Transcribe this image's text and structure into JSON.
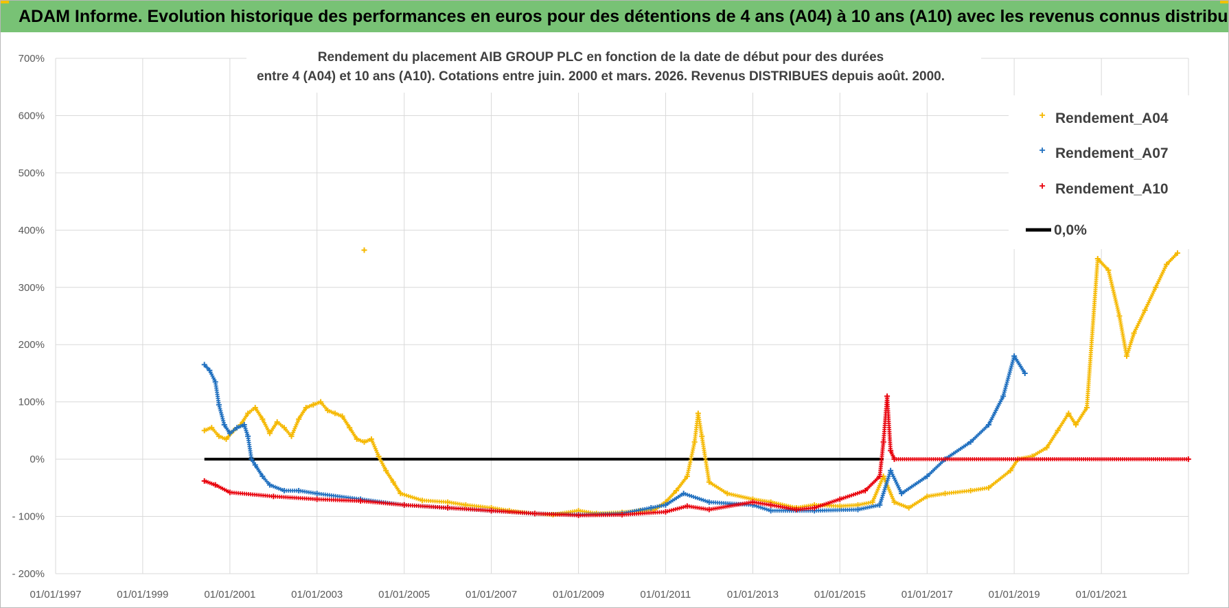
{
  "header": {
    "title": "ADAM Informe. Evolution historique des performances en euros pour des détentions de 4 ans (A04) à 10 ans (A10) avec les revenus connus distribués"
  },
  "colors": {
    "banner": "#78c275",
    "a04": "#f5b800",
    "a07": "#1f6fbf",
    "a10": "#e8000b",
    "zero": "#000000",
    "grid": "#d9d9d9"
  },
  "chart_data": {
    "type": "scatter",
    "title_lines": [
      "Rendement du placement AIB GROUP PLC en fonction de la date de début pour des durées",
      "entre 4 (A04) et 10 ans (A10). Cotations entre juin. 2000 et mars. 2026. Revenus DISTRIBUES depuis août. 2000."
    ],
    "x_axis": {
      "type": "date",
      "range": [
        "01/01/1997",
        "01/01/2023"
      ],
      "tick_labels": [
        "01/01/1997",
        "01/01/1999",
        "01/01/2001",
        "01/01/2003",
        "01/01/2005",
        "01/01/2007",
        "01/01/2009",
        "01/01/2011",
        "01/01/2013",
        "01/01/2015",
        "01/01/2017",
        "01/01/2019",
        "01/01/2021"
      ]
    },
    "y_axis": {
      "range": [
        -200,
        700
      ],
      "unit": "%",
      "tick_labels": [
        "700%",
        "600%",
        "500%",
        "400%",
        "300%",
        "200%",
        "100%",
        "0%",
        "- 100%",
        "- 200%"
      ]
    },
    "grid": true,
    "legend_position": "top-right",
    "series": [
      {
        "name": "Rendement_A04",
        "color": "#f5b800",
        "points": [
          [
            "2000-06-01",
            50
          ],
          [
            "2000-08-01",
            55
          ],
          [
            "2000-10-01",
            40
          ],
          [
            "2000-12-01",
            35
          ],
          [
            "2001-02-01",
            50
          ],
          [
            "2001-04-01",
            60
          ],
          [
            "2001-06-01",
            80
          ],
          [
            "2001-08-01",
            90
          ],
          [
            "2001-10-01",
            70
          ],
          [
            "2001-12-01",
            45
          ],
          [
            "2002-02-01",
            65
          ],
          [
            "2002-04-01",
            55
          ],
          [
            "2002-06-01",
            40
          ],
          [
            "2002-08-01",
            70
          ],
          [
            "2002-10-01",
            90
          ],
          [
            "2002-12-01",
            95
          ],
          [
            "2003-02-01",
            100
          ],
          [
            "2003-04-01",
            85
          ],
          [
            "2003-06-01",
            80
          ],
          [
            "2003-08-01",
            75
          ],
          [
            "2003-10-01",
            55
          ],
          [
            "2003-12-01",
            35
          ],
          [
            "2004-02-01",
            30
          ],
          [
            "2004-04-01",
            35
          ],
          [
            "2004-06-01",
            5
          ],
          [
            "2004-08-01",
            -20
          ],
          [
            "2004-10-01",
            -40
          ],
          [
            "2004-12-01",
            -60
          ],
          [
            "2005-06-01",
            -72
          ],
          [
            "2006-01-01",
            -75
          ],
          [
            "2006-06-01",
            -80
          ],
          [
            "2007-01-01",
            -85
          ],
          [
            "2007-06-01",
            -90
          ],
          [
            "2008-01-01",
            -95
          ],
          [
            "2008-06-01",
            -97
          ],
          [
            "2009-01-01",
            -90
          ],
          [
            "2009-06-01",
            -95
          ],
          [
            "2010-01-01",
            -93
          ],
          [
            "2010-06-01",
            -90
          ],
          [
            "2010-10-01",
            -88
          ],
          [
            "2011-01-01",
            -75
          ],
          [
            "2011-04-01",
            -55
          ],
          [
            "2011-07-01",
            -30
          ],
          [
            "2011-09-01",
            30
          ],
          [
            "2011-10-01",
            80
          ],
          [
            "2011-11-01",
            40
          ],
          [
            "2012-01-01",
            -40
          ],
          [
            "2012-06-01",
            -60
          ],
          [
            "2013-01-01",
            -70
          ],
          [
            "2013-06-01",
            -75
          ],
          [
            "2014-01-01",
            -85
          ],
          [
            "2014-06-01",
            -80
          ],
          [
            "2015-01-01",
            -82
          ],
          [
            "2015-06-01",
            -80
          ],
          [
            "2015-10-01",
            -75
          ],
          [
            "2016-01-01",
            -30
          ],
          [
            "2016-04-01",
            -75
          ],
          [
            "2016-08-01",
            -85
          ],
          [
            "2017-01-01",
            -65
          ],
          [
            "2017-06-01",
            -60
          ],
          [
            "2018-01-01",
            -55
          ],
          [
            "2018-06-01",
            -50
          ],
          [
            "2018-12-01",
            -20
          ],
          [
            "2019-02-01",
            0
          ],
          [
            "2019-06-01",
            5
          ],
          [
            "2019-10-01",
            20
          ],
          [
            "2020-01-01",
            50
          ],
          [
            "2020-04-01",
            80
          ],
          [
            "2020-06-01",
            60
          ],
          [
            "2020-09-01",
            90
          ],
          [
            "2020-12-01",
            350
          ],
          [
            "2021-03-01",
            330
          ],
          [
            "2021-06-01",
            250
          ],
          [
            "2021-08-01",
            180
          ],
          [
            "2021-10-01",
            220
          ],
          [
            "2022-01-01",
            260
          ],
          [
            "2022-04-01",
            300
          ],
          [
            "2022-07-01",
            340
          ],
          [
            "2022-10-01",
            360
          ]
        ]
      },
      {
        "name": "Rendement_A07",
        "color": "#1f6fbf",
        "points": [
          [
            "2000-06-01",
            165
          ],
          [
            "2000-07-15",
            155
          ],
          [
            "2000-09-01",
            135
          ],
          [
            "2000-10-01",
            95
          ],
          [
            "2000-11-15",
            60
          ],
          [
            "2001-01-01",
            45
          ],
          [
            "2001-03-01",
            55
          ],
          [
            "2001-05-01",
            60
          ],
          [
            "2001-06-01",
            40
          ],
          [
            "2001-07-01",
            0
          ],
          [
            "2001-08-01",
            -10
          ],
          [
            "2001-10-01",
            -30
          ],
          [
            "2001-12-01",
            -45
          ],
          [
            "2002-04-01",
            -55
          ],
          [
            "2002-08-01",
            -55
          ],
          [
            "2003-01-01",
            -60
          ],
          [
            "2004-01-01",
            -70
          ],
          [
            "2005-01-01",
            -80
          ],
          [
            "2006-01-01",
            -85
          ],
          [
            "2007-01-01",
            -90
          ],
          [
            "2008-01-01",
            -95
          ],
          [
            "2009-01-01",
            -97
          ],
          [
            "2010-01-01",
            -95
          ],
          [
            "2010-09-01",
            -85
          ],
          [
            "2011-01-01",
            -80
          ],
          [
            "2011-06-01",
            -60
          ],
          [
            "2012-01-01",
            -75
          ],
          [
            "2013-01-01",
            -80
          ],
          [
            "2013-06-01",
            -90
          ],
          [
            "2014-06-01",
            -90
          ],
          [
            "2015-06-01",
            -88
          ],
          [
            "2015-12-01",
            -80
          ],
          [
            "2016-03-01",
            -20
          ],
          [
            "2016-06-01",
            -60
          ],
          [
            "2017-01-01",
            -30
          ],
          [
            "2017-06-01",
            0
          ],
          [
            "2018-01-01",
            30
          ],
          [
            "2018-06-01",
            60
          ],
          [
            "2018-10-01",
            110
          ],
          [
            "2019-01-01",
            180
          ],
          [
            "2019-04-01",
            150
          ]
        ]
      },
      {
        "name": "Rendement_A10",
        "color": "#e8000b",
        "points": [
          [
            "2000-06-01",
            -38
          ],
          [
            "2000-09-01",
            -45
          ],
          [
            "2001-01-01",
            -58
          ],
          [
            "2002-01-01",
            -65
          ],
          [
            "2003-01-01",
            -70
          ],
          [
            "2004-01-01",
            -73
          ],
          [
            "2005-01-01",
            -80
          ],
          [
            "2006-01-01",
            -85
          ],
          [
            "2007-01-01",
            -90
          ],
          [
            "2008-01-01",
            -95
          ],
          [
            "2009-01-01",
            -98
          ],
          [
            "2010-01-01",
            -97
          ],
          [
            "2011-01-01",
            -92
          ],
          [
            "2011-07-01",
            -82
          ],
          [
            "2012-01-01",
            -88
          ],
          [
            "2013-01-01",
            -75
          ],
          [
            "2013-06-01",
            -80
          ],
          [
            "2014-01-01",
            -88
          ],
          [
            "2014-06-01",
            -85
          ],
          [
            "2015-01-01",
            -70
          ],
          [
            "2015-08-01",
            -55
          ],
          [
            "2015-12-01",
            -30
          ],
          [
            "2016-01-01",
            30
          ],
          [
            "2016-02-01",
            110
          ],
          [
            "2016-03-01",
            15
          ],
          [
            "2016-04-01",
            0
          ],
          [
            "2022-12-31",
            0
          ]
        ]
      }
    ],
    "reference_lines": [
      {
        "name": "0,0%",
        "color": "#000000",
        "y": 0,
        "x_range": [
          "2000-06-01",
          "2016-01-01"
        ]
      }
    ],
    "annotations": [
      {
        "series": "Rendement_A04",
        "x": "2004-02-01",
        "y": 365
      }
    ]
  }
}
